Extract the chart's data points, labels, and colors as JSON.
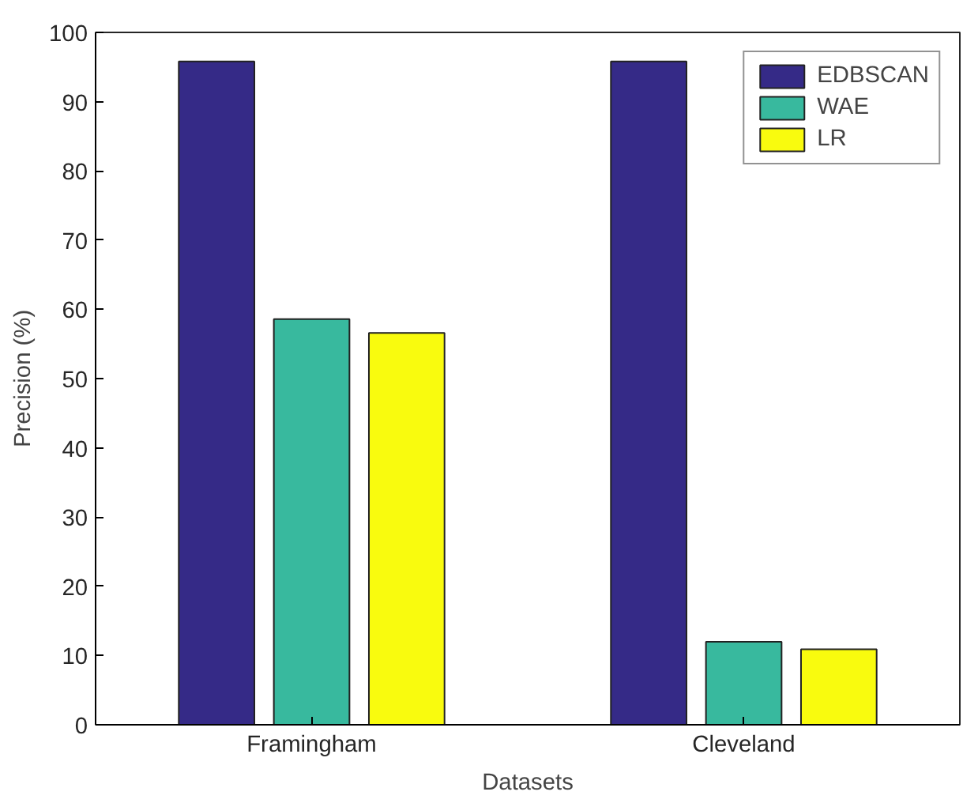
{
  "chart_data": {
    "type": "bar",
    "xlabel": "Datasets",
    "ylabel": "Precision (%)",
    "categories": [
      "Framingham",
      "Cleveland"
    ],
    "series": [
      {
        "name": "EDBSCAN",
        "color": "#352a87",
        "values": [
          95.8,
          95.8
        ]
      },
      {
        "name": "WAE",
        "color": "#38b99e",
        "values": [
          58.6,
          12.0
        ]
      },
      {
        "name": "LR",
        "color": "#f9fb0e",
        "values": [
          56.6,
          10.9
        ]
      }
    ],
    "ylim": [
      0,
      100
    ],
    "yticks": [
      0,
      10,
      20,
      30,
      40,
      50,
      60,
      70,
      80,
      90,
      100
    ],
    "grid": false,
    "legend": "top right"
  }
}
